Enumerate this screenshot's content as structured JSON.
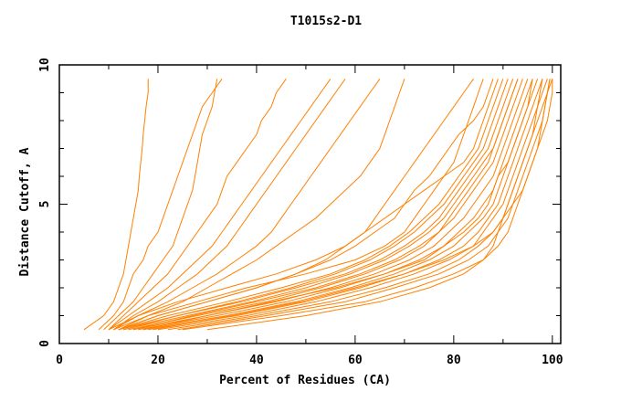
{
  "chart_data": {
    "type": "line",
    "title": "T1015s2-D1",
    "xlabel": "Percent of Residues (CA)",
    "ylabel": "Distance Cutoff, A",
    "xlim": [
      0,
      101.7
    ],
    "ylim": [
      0,
      10
    ],
    "x_ticks": [
      "0",
      "20",
      "40",
      "60",
      "80",
      "100"
    ],
    "y_ticks": [
      "0",
      "5",
      "10"
    ],
    "grid": false,
    "legend": "none",
    "line_color": "#ff8000",
    "cutoffs": [
      0.5,
      1,
      1.5,
      2,
      2.5,
      3,
      3.5,
      4,
      4.5,
      5,
      5.5,
      6,
      6.5,
      7,
      7.5,
      8,
      8.5,
      9,
      9.5
    ],
    "series": [
      {
        "x": [
          5,
          9,
          11,
          12,
          13,
          13.5,
          14,
          14.5,
          15,
          15.5,
          16,
          16.2,
          16.5,
          16.8,
          17,
          17.3,
          17.6,
          18,
          18
        ]
      },
      {
        "x": [
          8,
          11,
          13,
          14,
          15,
          17,
          18,
          20,
          21,
          22,
          23,
          24,
          25,
          26,
          27,
          28,
          29,
          31,
          33
        ]
      },
      {
        "x": [
          9,
          12,
          15,
          17,
          19,
          21,
          23,
          24,
          25,
          26,
          27,
          27.5,
          28,
          28.5,
          29,
          30,
          31,
          31.5,
          32
        ]
      },
      {
        "x": [
          10,
          13,
          16,
          19,
          22,
          24,
          26,
          28,
          30,
          32,
          33,
          34,
          36,
          38,
          40,
          41,
          43,
          44,
          46
        ]
      },
      {
        "x": [
          10,
          14,
          18,
          22,
          25,
          28,
          31,
          33,
          35,
          37,
          39,
          41,
          43,
          45,
          47,
          49,
          51,
          53,
          55
        ]
      },
      {
        "x": [
          11,
          15,
          20,
          24,
          28,
          31,
          34,
          36,
          38,
          40,
          42,
          44,
          46,
          48,
          50,
          52,
          54,
          56,
          58
        ]
      },
      {
        "x": [
          11,
          16,
          22,
          27,
          32,
          36,
          40,
          43,
          45,
          47,
          49,
          51,
          53,
          55,
          57,
          59,
          61,
          63,
          65
        ]
      },
      {
        "x": [
          12,
          18,
          25,
          30,
          35,
          40,
          44,
          48,
          52,
          55,
          58,
          61,
          63,
          65,
          66,
          67,
          68,
          69,
          70
        ]
      },
      {
        "x": [
          12,
          20,
          30,
          40,
          48,
          54,
          58,
          62,
          66,
          70,
          74,
          78,
          82,
          84,
          85,
          86,
          87,
          88,
          89
        ]
      },
      {
        "x": [
          12,
          20,
          30,
          40,
          48,
          55,
          60,
          64,
          68,
          70,
          72,
          75,
          77,
          79,
          81,
          84,
          86,
          87,
          88
        ]
      },
      {
        "x": [
          11,
          18,
          28,
          38,
          50,
          60,
          66,
          70,
          72,
          74,
          76,
          78,
          80,
          81,
          82,
          83,
          84,
          85,
          86
        ]
      },
      {
        "x": [
          10,
          16,
          24,
          34,
          44,
          52,
          58,
          62,
          64,
          66,
          68,
          70,
          72,
          74,
          76,
          78,
          80,
          82,
          84
        ]
      },
      {
        "x": [
          12,
          24,
          36,
          47,
          56,
          63,
          68,
          72,
          75,
          78,
          80,
          82,
          84,
          86,
          87,
          88,
          89,
          90,
          91
        ]
      },
      {
        "x": [
          13,
          26,
          39,
          50,
          59,
          66,
          71,
          75,
          78,
          80,
          82,
          84,
          86,
          88,
          89,
          90,
          91,
          92,
          93
        ]
      },
      {
        "x": [
          14,
          28,
          42,
          53,
          62,
          69,
          74,
          77,
          80,
          82,
          84,
          86,
          88,
          89,
          90,
          91,
          92,
          93,
          94
        ]
      },
      {
        "x": [
          15,
          30,
          44,
          55,
          64,
          71,
          76,
          79,
          82,
          84,
          86,
          88,
          89,
          90,
          91,
          92,
          93,
          94,
          95
        ]
      },
      {
        "x": [
          16,
          32,
          46,
          57,
          66,
          73,
          78,
          81,
          84,
          86,
          88,
          89,
          90,
          91,
          92,
          93,
          94,
          95,
          96
        ]
      },
      {
        "x": [
          17,
          34,
          48,
          59,
          68,
          75,
          80,
          83,
          86,
          88,
          89,
          90,
          91,
          92,
          93,
          94,
          95,
          96,
          97
        ]
      },
      {
        "x": [
          18,
          36,
          50,
          61,
          70,
          77,
          82,
          85,
          87,
          89,
          90,
          91,
          92,
          93,
          94,
          95,
          96,
          97,
          98
        ]
      },
      {
        "x": [
          20,
          38,
          52,
          63,
          72,
          79,
          84,
          86,
          88,
          90,
          91,
          92,
          93,
          94,
          95,
          96,
          97,
          98,
          99
        ]
      },
      {
        "x": [
          22,
          40,
          55,
          66,
          75,
          81,
          85,
          88,
          90,
          91,
          92,
          93,
          94,
          95,
          96,
          97,
          98,
          99,
          99.5
        ]
      },
      {
        "x": [
          24,
          42,
          58,
          68,
          77,
          83,
          87,
          89,
          91,
          92,
          93,
          94,
          95,
          96,
          97,
          98,
          98.5,
          99,
          100
        ]
      },
      {
        "x": [
          12,
          22,
          34,
          45,
          55,
          62,
          67,
          71,
          74,
          77,
          79,
          81,
          83,
          85,
          86,
          87,
          88,
          89,
          90
        ]
      },
      {
        "x": [
          13,
          24,
          37,
          48,
          58,
          65,
          70,
          74,
          77,
          79,
          81,
          83,
          85,
          87,
          88,
          89,
          90,
          91,
          92
        ]
      },
      {
        "x": [
          15,
          27,
          40,
          52,
          61,
          68,
          73,
          77,
          79,
          81,
          83,
          85,
          87,
          88,
          89,
          90,
          91,
          92,
          93
        ]
      },
      {
        "x": [
          17,
          30,
          43,
          56,
          66,
          74,
          78,
          82,
          85,
          87,
          88,
          89,
          91,
          92,
          93,
          94,
          95,
          95.5,
          96
        ]
      },
      {
        "x": [
          19,
          35,
          49,
          60,
          70,
          78,
          84,
          88,
          90,
          91,
          92,
          93,
          94,
          95,
          96,
          96.5,
          97,
          97.5,
          98
        ]
      },
      {
        "x": [
          25,
          45,
          62,
          72,
          80,
          86,
          89,
          91,
          92,
          93,
          94,
          95,
          96,
          97,
          97.5,
          98,
          98.5,
          99,
          99.5
        ]
      },
      {
        "x": [
          30,
          50,
          65,
          75,
          82,
          86,
          88,
          89,
          90,
          92,
          94,
          95,
          96,
          97,
          98,
          99,
          99.5,
          100,
          100
        ]
      }
    ]
  }
}
